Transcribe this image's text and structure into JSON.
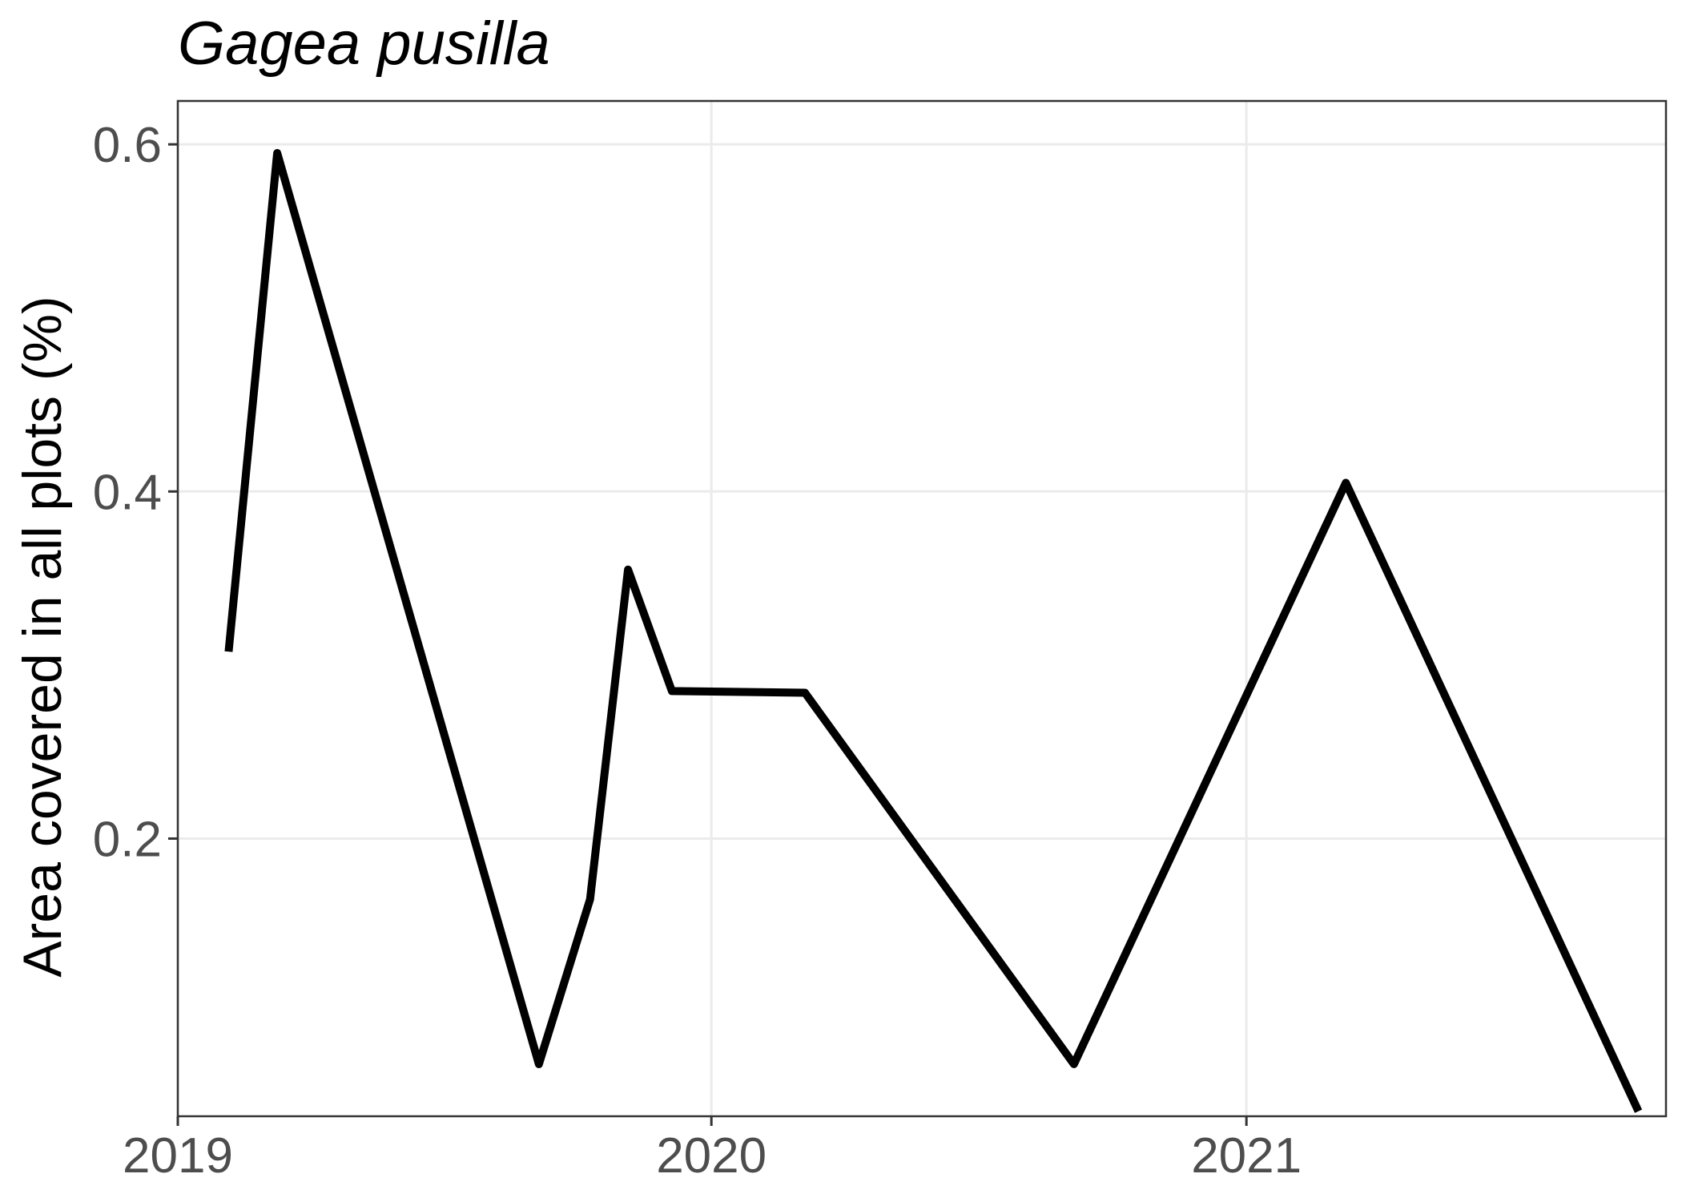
{
  "chart_data": {
    "type": "line",
    "title": "Gagea pusilla",
    "xlabel": "",
    "ylabel": "Area covered in all plots (%)",
    "x_ticks": [
      "2019",
      "2020",
      "2021"
    ],
    "y_ticks": [
      "0.2",
      "0.4",
      "0.6"
    ],
    "xlim": [
      "2019-01-01",
      "2021-10-15"
    ],
    "ylim": [
      0.04,
      0.625
    ],
    "grid": true,
    "legend": "none",
    "series": [
      {
        "color": "#000000",
        "points": [
          {
            "x": "2019-02-05",
            "y": 0.31
          },
          {
            "x": "2019-03-10",
            "y": 0.595
          },
          {
            "x": "2019-09-05",
            "y": 0.07
          },
          {
            "x": "2019-10-10",
            "y": 0.165
          },
          {
            "x": "2019-11-05",
            "y": 0.355
          },
          {
            "x": "2019-12-05",
            "y": 0.285
          },
          {
            "x": "2020-03-05",
            "y": 0.284
          },
          {
            "x": "2020-09-05",
            "y": 0.07
          },
          {
            "x": "2021-03-10",
            "y": 0.405
          },
          {
            "x": "2021-09-25",
            "y": 0.045
          }
        ]
      }
    ]
  }
}
